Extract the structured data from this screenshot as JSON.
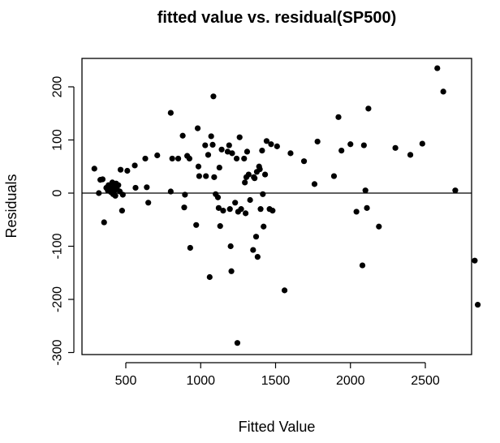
{
  "chart_data": {
    "type": "scatter",
    "title": "fitted value vs. residual(SP500)",
    "xlabel": "Fitted Value",
    "ylabel": "Residuals",
    "xlim": [
      250,
      2900
    ],
    "ylim": [
      -300,
      250
    ],
    "x_ticks": [
      500,
      1000,
      1500,
      2000,
      2500
    ],
    "y_ticks": [
      -300,
      -200,
      -100,
      0,
      100,
      200
    ],
    "x_tick_labels": [
      "500",
      "1000",
      "1500",
      "2000",
      "2500"
    ],
    "y_tick_labels": [
      "-300",
      "-200",
      "-100",
      "0",
      "100",
      "200"
    ],
    "reference_line_y": 0,
    "grid": false,
    "legend": "none",
    "point_color": "#000000",
    "points": [
      [
        290,
        46
      ],
      [
        320,
        0
      ],
      [
        330,
        25
      ],
      [
        345,
        26
      ],
      [
        355,
        -55
      ],
      [
        370,
        10
      ],
      [
        380,
        5
      ],
      [
        385,
        15
      ],
      [
        395,
        8
      ],
      [
        400,
        2
      ],
      [
        410,
        20
      ],
      [
        415,
        -2
      ],
      [
        420,
        12
      ],
      [
        425,
        5
      ],
      [
        430,
        -5
      ],
      [
        435,
        18
      ],
      [
        440,
        8
      ],
      [
        450,
        15
      ],
      [
        460,
        3
      ],
      [
        465,
        44
      ],
      [
        475,
        -33
      ],
      [
        480,
        -3
      ],
      [
        510,
        42
      ],
      [
        560,
        52
      ],
      [
        565,
        10
      ],
      [
        630,
        65
      ],
      [
        640,
        11
      ],
      [
        650,
        -18
      ],
      [
        710,
        71
      ],
      [
        800,
        151
      ],
      [
        800,
        3
      ],
      [
        810,
        65
      ],
      [
        850,
        65
      ],
      [
        880,
        108
      ],
      [
        890,
        -27
      ],
      [
        895,
        -3
      ],
      [
        910,
        70
      ],
      [
        925,
        65
      ],
      [
        930,
        -103
      ],
      [
        970,
        -60
      ],
      [
        980,
        122
      ],
      [
        985,
        50
      ],
      [
        990,
        32
      ],
      [
        1030,
        90
      ],
      [
        1035,
        32
      ],
      [
        1050,
        72
      ],
      [
        1060,
        -158
      ],
      [
        1070,
        107
      ],
      [
        1080,
        91
      ],
      [
        1085,
        182
      ],
      [
        1090,
        30
      ],
      [
        1100,
        -2
      ],
      [
        1115,
        -8
      ],
      [
        1120,
        -28
      ],
      [
        1125,
        48
      ],
      [
        1130,
        -62
      ],
      [
        1140,
        82
      ],
      [
        1150,
        -33
      ],
      [
        1180,
        78
      ],
      [
        1190,
        90
      ],
      [
        1195,
        -30
      ],
      [
        1200,
        -100
      ],
      [
        1205,
        -147
      ],
      [
        1210,
        75
      ],
      [
        1230,
        -18
      ],
      [
        1240,
        65
      ],
      [
        1245,
        -282
      ],
      [
        1250,
        -35
      ],
      [
        1260,
        105
      ],
      [
        1270,
        -30
      ],
      [
        1290,
        65
      ],
      [
        1295,
        20
      ],
      [
        1300,
        -38
      ],
      [
        1305,
        30
      ],
      [
        1310,
        78
      ],
      [
        1320,
        35
      ],
      [
        1330,
        -13
      ],
      [
        1350,
        -107
      ],
      [
        1355,
        30
      ],
      [
        1360,
        28
      ],
      [
        1370,
        -82
      ],
      [
        1375,
        40
      ],
      [
        1380,
        -120
      ],
      [
        1390,
        50
      ],
      [
        1395,
        45
      ],
      [
        1400,
        -30
      ],
      [
        1410,
        80
      ],
      [
        1415,
        -2
      ],
      [
        1420,
        -63
      ],
      [
        1430,
        35
      ],
      [
        1440,
        98
      ],
      [
        1460,
        -30
      ],
      [
        1470,
        92
      ],
      [
        1480,
        -33
      ],
      [
        1510,
        88
      ],
      [
        1560,
        -183
      ],
      [
        1600,
        75
      ],
      [
        1690,
        60
      ],
      [
        1760,
        17
      ],
      [
        1780,
        97
      ],
      [
        1890,
        32
      ],
      [
        1920,
        143
      ],
      [
        1940,
        80
      ],
      [
        2000,
        92
      ],
      [
        2040,
        -35
      ],
      [
        2080,
        -136
      ],
      [
        2090,
        90
      ],
      [
        2100,
        5
      ],
      [
        2110,
        -28
      ],
      [
        2120,
        159
      ],
      [
        2190,
        -63
      ],
      [
        2300,
        85
      ],
      [
        2400,
        72
      ],
      [
        2480,
        93
      ],
      [
        2580,
        235
      ],
      [
        2620,
        191
      ],
      [
        2700,
        5
      ],
      [
        2830,
        -127
      ],
      [
        2850,
        -210
      ]
    ]
  }
}
